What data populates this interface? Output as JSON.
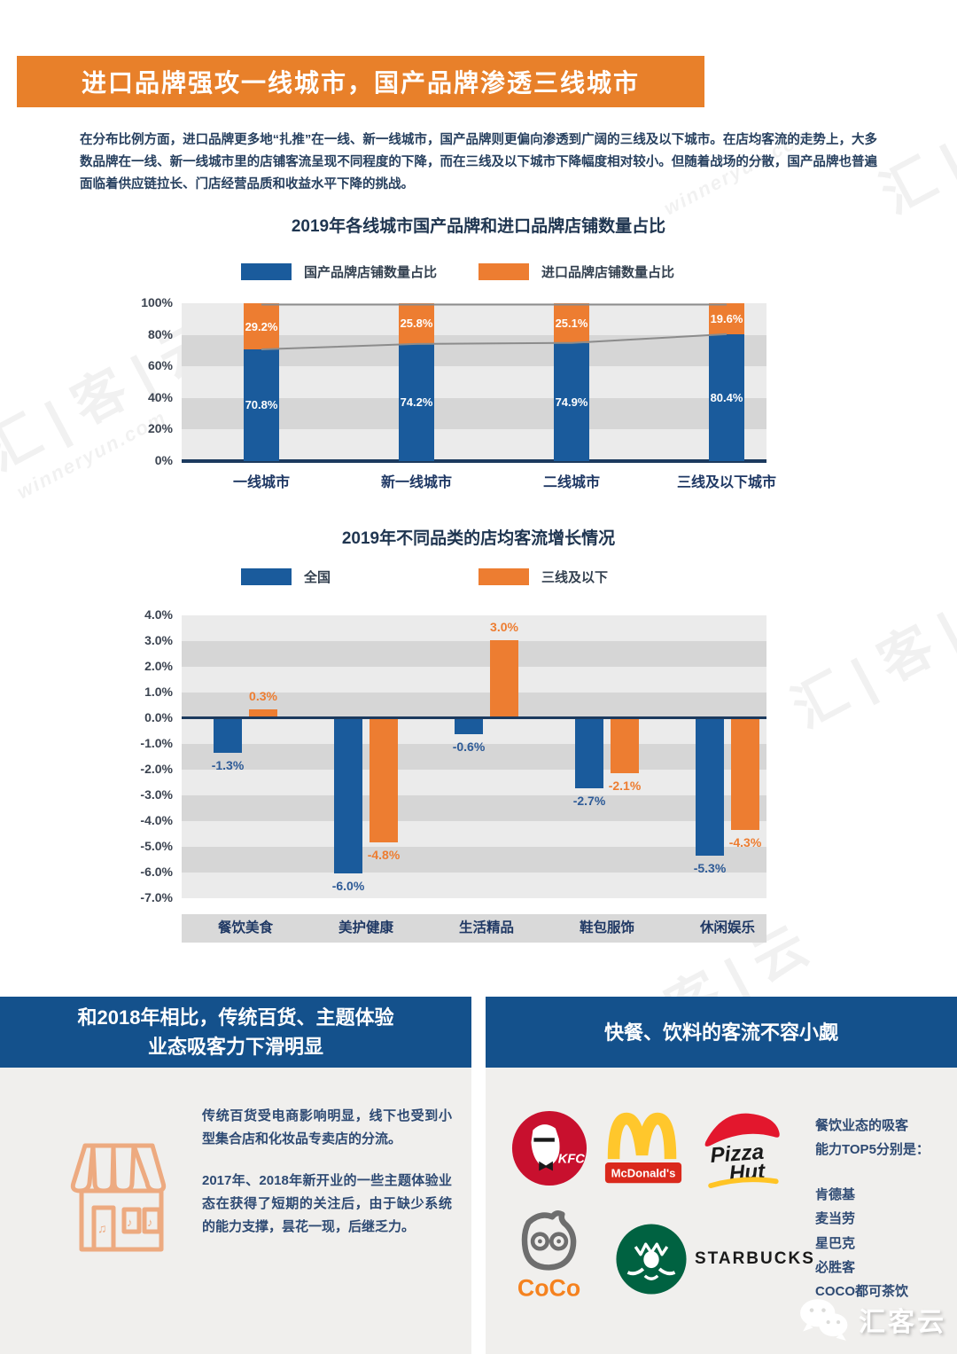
{
  "header": {
    "title": "进口品牌强攻一线城市，国产品牌渗透三线城市",
    "intro": "在分布比例方面，进口品牌更多地“扎推”在一线、新一线城市，国产品牌则更偏向渗透到广阔的三线及以下城市。在店均客流的走势上，大多数品牌在一线、新一线城市里的店铺客流呈现不同程度的下降，而在三线及以下城市下降幅度相对较小。但随着战场的分散，国产品牌也普遍面临着供应链拉长、门店经营品质和收益水平下降的挑战。"
  },
  "colors": {
    "accent_orange": "#E8802A",
    "bar_blue": "#1A5B9C",
    "bar_orange": "#ED7D31",
    "banner_blue": "#14518C",
    "baseline_navy": "#1C3A5E"
  },
  "chart_data": [
    {
      "type": "bar",
      "stacked": true,
      "title": "2019年各线城市国产品牌和进口品牌店铺数量占比",
      "categories": [
        "一线城市",
        "新一线城市",
        "二线城市",
        "三线及以下城市"
      ],
      "series": [
        {
          "name": "国产品牌店铺数量占比",
          "color": "#1A5B9C",
          "values": [
            70.8,
            74.2,
            74.9,
            80.4
          ]
        },
        {
          "name": "进口品牌店铺数量占比",
          "color": "#ED7D31",
          "values": [
            29.2,
            25.8,
            25.1,
            19.6
          ]
        }
      ],
      "y_ticks": [
        "100%",
        "80%",
        "60%",
        "40%",
        "20%",
        "0%"
      ],
      "ylim": [
        0,
        100
      ],
      "value_suffix": "%",
      "legend_position": "top",
      "grid": "striped-bands",
      "overlay_line": "boundary-of-series"
    },
    {
      "type": "bar",
      "stacked": false,
      "title": "2019年不同品类的店均客流增长情况",
      "categories": [
        "餐饮美食",
        "美护健康",
        "生活精品",
        "鞋包服饰",
        "休闲娱乐"
      ],
      "series": [
        {
          "name": "全国",
          "color": "#1A5B9C",
          "values": [
            -1.3,
            -6.0,
            -0.6,
            -2.7,
            -5.3
          ]
        },
        {
          "name": "三线及以下",
          "color": "#ED7D31",
          "values": [
            0.3,
            -4.8,
            3.0,
            -2.1,
            -4.3
          ]
        }
      ],
      "y_ticks": [
        "4.0%",
        "3.0%",
        "2.0%",
        "1.0%",
        "0.0%",
        "-1.0%",
        "-2.0%",
        "-3.0%",
        "-4.0%",
        "-5.0%",
        "-6.0%",
        "-7.0%"
      ],
      "ylim": [
        -7,
        4
      ],
      "value_suffix": "%",
      "legend_position": "top",
      "grid": "striped-bands"
    }
  ],
  "bottom_left": {
    "banner_line1": "和2018年相比，传统百货、主题体验",
    "banner_line2": "业态吸客力下滑明显",
    "para1": "传统百货受电商影响明显，线下也受到小型集合店和化妆品专卖店的分流。",
    "para2": "2017年、2018年新开业的一些主题体验业态在获得了短期的关注后，由于缺少系统的能力支撑，昙花一现，后继乏力。"
  },
  "bottom_right": {
    "banner": "快餐、饮料的客流不容小觑",
    "heading_line1": "餐饮业态的吸客",
    "heading_line2": "能力TOP5分别是：",
    "top5": [
      "肯德基",
      "麦当劳",
      "星巴克",
      "必胜客",
      "COCO都可茶饮"
    ],
    "logos": [
      {
        "id": "kfc",
        "text": "KFC"
      },
      {
        "id": "mcdonalds",
        "text": "McDonald's"
      },
      {
        "id": "pizza-hut",
        "text_line1": "Pizza",
        "text_line2": "Hut"
      },
      {
        "id": "coco",
        "text": "CoCo"
      },
      {
        "id": "starbucks",
        "text": "STARBUCKS"
      }
    ]
  },
  "footer": {
    "wechat_name": "汇客云"
  },
  "watermark": {
    "brand": "汇 | 客 | 云",
    "site": "winneryun.com"
  }
}
